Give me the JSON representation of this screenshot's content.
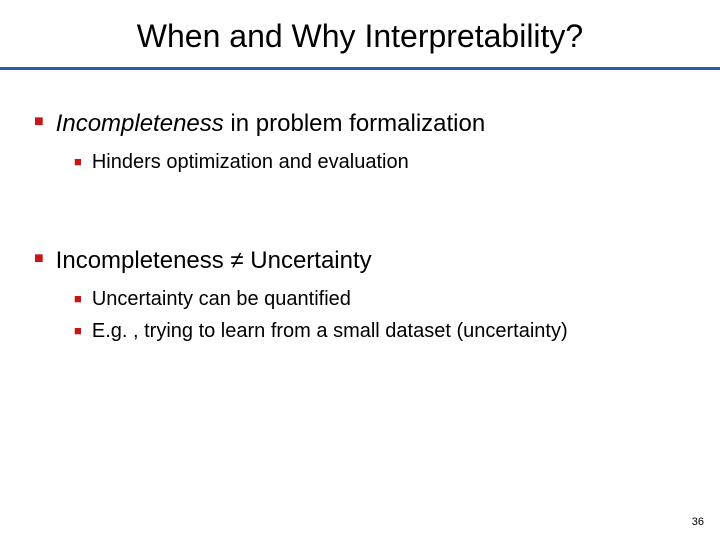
{
  "slide": {
    "title": "When and Why Interpretability?",
    "underline_color": "#2b5ca9",
    "bullet_marker_color": "#c41818",
    "background_color": "#ffffff",
    "text_color": "#000000",
    "title_fontsize": 32,
    "l1_fontsize": 24,
    "l2_fontsize": 20,
    "page_number_fontsize": 11,
    "sections": [
      {
        "main_italic": "Incompleteness",
        "main_rest": " in problem formalization",
        "subs": [
          "Hinders optimization and evaluation"
        ]
      },
      {
        "main_full": "Incompleteness ≠ Uncertainty",
        "subs": [
          "Uncertainty can be quantified",
          "E.g. , trying to learn from a small dataset (uncertainty)"
        ]
      }
    ],
    "page_number": "36"
  }
}
